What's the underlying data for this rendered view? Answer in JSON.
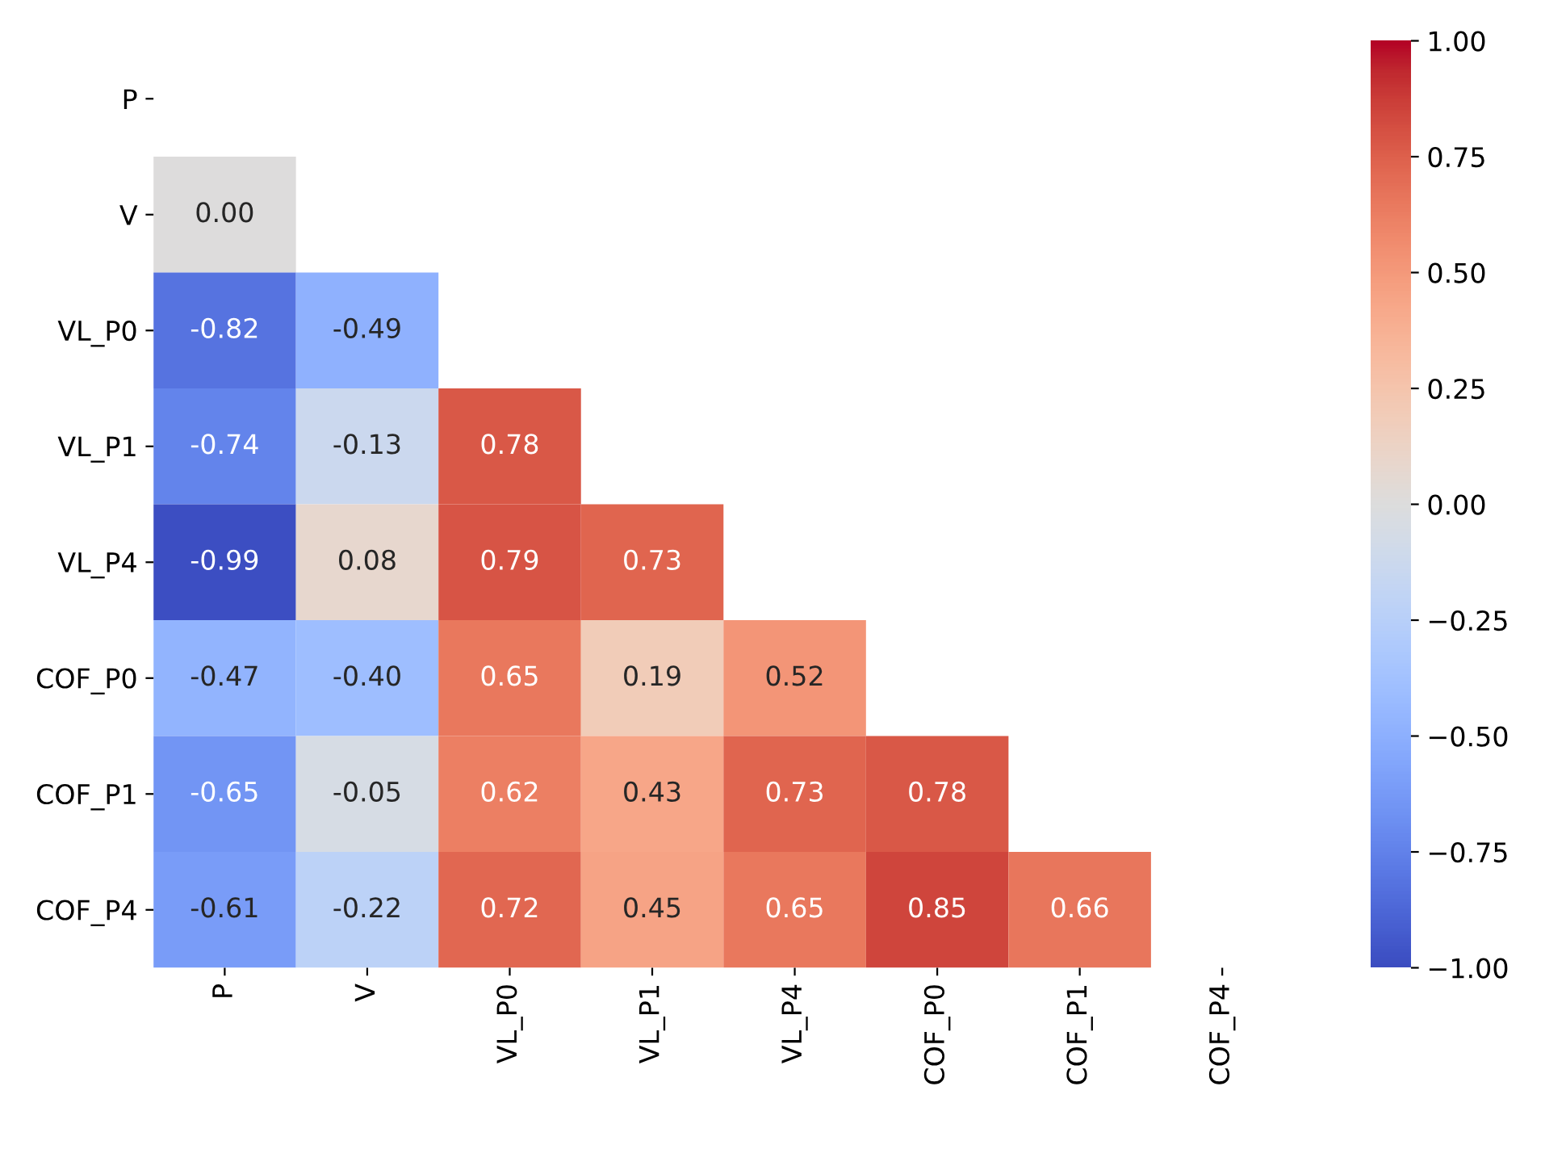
{
  "chart_data": {
    "type": "heatmap",
    "categories": [
      "P",
      "V",
      "VL_P0",
      "VL_P1",
      "VL_P4",
      "COF_P0",
      "COF_P1",
      "COF_P4"
    ],
    "y_categories": [
      "P",
      "V",
      "VL_P0",
      "VL_P1",
      "VL_P4",
      "COF_P0",
      "COF_P1",
      "COF_P4"
    ],
    "cells": [
      [
        null,
        null,
        null,
        null,
        null,
        null,
        null,
        null
      ],
      [
        0.0,
        null,
        null,
        null,
        null,
        null,
        null,
        null
      ],
      [
        -0.82,
        -0.49,
        null,
        null,
        null,
        null,
        null,
        null
      ],
      [
        -0.74,
        -0.13,
        0.78,
        null,
        null,
        null,
        null,
        null
      ],
      [
        -0.99,
        0.08,
        0.79,
        0.73,
        null,
        null,
        null,
        null
      ],
      [
        -0.47,
        -0.4,
        0.65,
        0.19,
        0.52,
        null,
        null,
        null
      ],
      [
        -0.65,
        -0.05,
        0.62,
        0.43,
        0.73,
        0.78,
        null,
        null
      ],
      [
        -0.61,
        -0.22,
        0.72,
        0.45,
        0.65,
        0.85,
        0.66,
        null
      ]
    ],
    "cell_labels": [
      [
        null,
        null,
        null,
        null,
        null,
        null,
        null,
        null
      ],
      [
        "0.00",
        null,
        null,
        null,
        null,
        null,
        null,
        null
      ],
      [
        "-0.82",
        "-0.49",
        null,
        null,
        null,
        null,
        null,
        null
      ],
      [
        "-0.74",
        "-0.13",
        "0.78",
        null,
        null,
        null,
        null,
        null
      ],
      [
        "-0.99",
        "0.08",
        "0.79",
        "0.73",
        null,
        null,
        null,
        null
      ],
      [
        "-0.47",
        "-0.40",
        "0.65",
        "0.19",
        "0.52",
        null,
        null,
        null
      ],
      [
        "-0.65",
        "-0.05",
        "0.62",
        "0.43",
        "0.73",
        "0.78",
        null,
        null
      ],
      [
        "-0.61",
        "-0.22",
        "0.72",
        "0.45",
        "0.65",
        "0.85",
        "0.66",
        null
      ]
    ],
    "clim": [
      -1,
      1
    ],
    "cticks": [
      {
        "value": -1,
        "label": "−1.00"
      },
      {
        "value": -0.75,
        "label": "−0.75"
      },
      {
        "value": -0.5,
        "label": "−0.50"
      },
      {
        "value": -0.25,
        "label": "−0.25"
      },
      {
        "value": 0,
        "label": "0.00"
      },
      {
        "value": 0.25,
        "label": "0.25"
      },
      {
        "value": 0.5,
        "label": "0.50"
      },
      {
        "value": 0.75,
        "label": "0.75"
      },
      {
        "value": 1,
        "label": "1.00"
      }
    ]
  }
}
